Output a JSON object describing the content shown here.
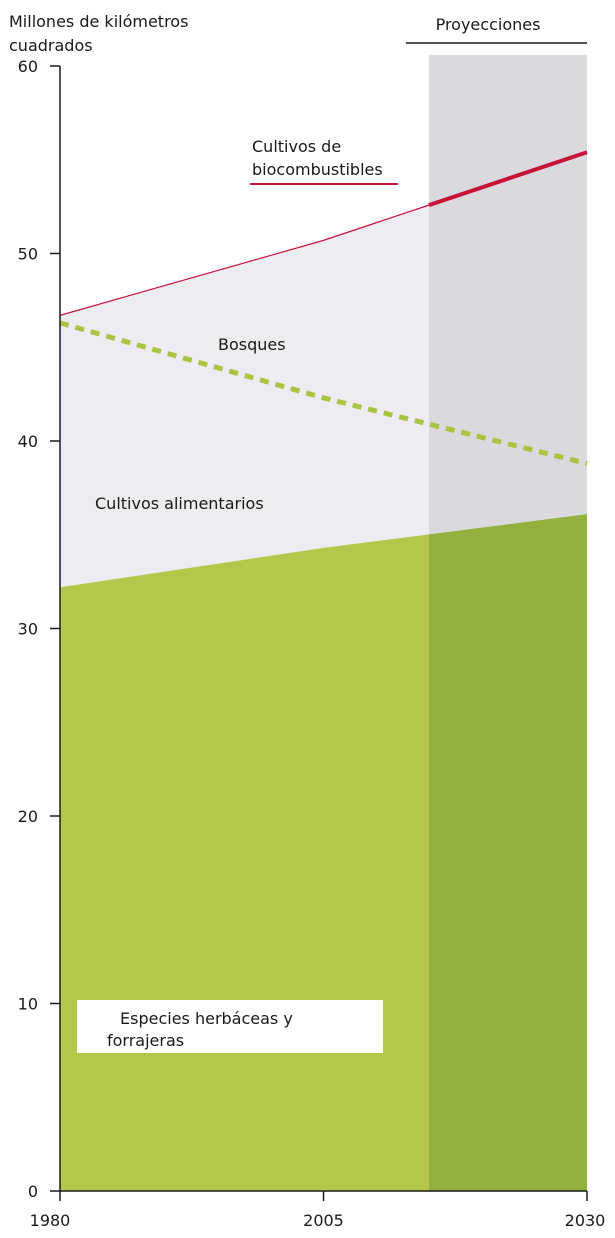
{
  "chart_data": {
    "type": "area",
    "ylabel_line1": "Millones de kilómetros",
    "ylabel_line2": "cuadrados",
    "projection_label": "Proyecciones",
    "ylim": [
      0,
      60
    ],
    "yticks": [
      0,
      10,
      20,
      30,
      40,
      50,
      60
    ],
    "x": [
      1980,
      2005,
      2030
    ],
    "projection_start": 2015,
    "series": [
      {
        "name_lines": [
          "Especies herbáceas y",
          "forrajeras"
        ],
        "kind": "area",
        "values": [
          32.2,
          34.3,
          36.1
        ]
      },
      {
        "name_lines": [
          "Cultivos alimentarios"
        ],
        "kind": "area",
        "values": [
          46.7,
          50.7,
          55.4
        ]
      },
      {
        "name_lines": [
          "Bosques"
        ],
        "kind": "dashed-line",
        "values": [
          46.3,
          42.3,
          38.8
        ]
      },
      {
        "name_lines": [
          "Cultivos de",
          "biocombustibles"
        ],
        "kind": "line",
        "values": [
          46.7,
          50.7,
          55.4
        ]
      }
    ],
    "colors": {
      "grass": "#b3c84b",
      "grass_projection": "#93b13e",
      "food": "#ececf2",
      "food_projection": "#dadade",
      "forest": "#a8c440",
      "biofuel": "#c8143c",
      "axis": "#1a1a1a"
    }
  }
}
